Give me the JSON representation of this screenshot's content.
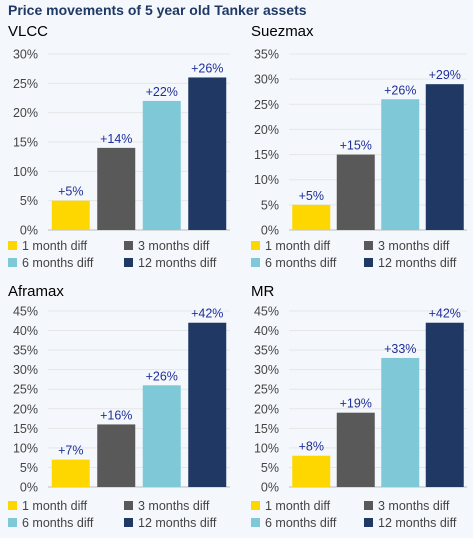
{
  "title": "Price movements of 5 year old Tanker assets",
  "colors": {
    "1 month diff": "#ffd700",
    "3 months diff": "#595959",
    "6 months diff": "#7fc8d8",
    "12 months diff": "#203864"
  },
  "chart_data": [
    {
      "type": "bar",
      "title": "VLCC",
      "categories": [
        "1 month diff",
        "3 months diff",
        "6 months diff",
        "12 months diff"
      ],
      "values": [
        5,
        14,
        22,
        26
      ],
      "data_labels": [
        "+5%",
        "+14%",
        "+22%",
        "+26%"
      ],
      "ylim": [
        0,
        30
      ],
      "yticks": [
        0,
        5,
        10,
        15,
        20,
        25,
        30
      ],
      "ytick_labels": [
        "0%",
        "5%",
        "10%",
        "15%",
        "20%",
        "25%",
        "30%"
      ],
      "legend": [
        "1 month diff",
        "3 months diff",
        "6 months diff",
        "12 months diff"
      ],
      "legend_position": "bottom"
    },
    {
      "type": "bar",
      "title": "Suezmax",
      "categories": [
        "1 month diff",
        "3 months diff",
        "6 months diff",
        "12 months diff"
      ],
      "values": [
        5,
        15,
        26,
        29
      ],
      "data_labels": [
        "+5%",
        "+15%",
        "+26%",
        "+29%"
      ],
      "ylim": [
        0,
        35
      ],
      "yticks": [
        0,
        5,
        10,
        15,
        20,
        25,
        30,
        35
      ],
      "ytick_labels": [
        "0%",
        "5%",
        "10%",
        "15%",
        "20%",
        "25%",
        "30%",
        "35%"
      ],
      "legend": [
        "1 month diff",
        "3 months diff",
        "6 months diff",
        "12 months diff"
      ],
      "legend_position": "bottom"
    },
    {
      "type": "bar",
      "title": "Aframax",
      "categories": [
        "1 month diff",
        "3 months diff",
        "6 months diff",
        "12 months diff"
      ],
      "values": [
        7,
        16,
        26,
        42
      ],
      "data_labels": [
        "+7%",
        "+16%",
        "+26%",
        "+42%"
      ],
      "ylim": [
        0,
        45
      ],
      "yticks": [
        0,
        5,
        10,
        15,
        20,
        25,
        30,
        35,
        40,
        45
      ],
      "ytick_labels": [
        "0%",
        "5%",
        "10%",
        "15%",
        "20%",
        "25%",
        "30%",
        "35%",
        "40%",
        "45%"
      ],
      "legend": [
        "1 month diff",
        "3 months diff",
        "6 months diff",
        "12 months diff"
      ],
      "legend_position": "bottom"
    },
    {
      "type": "bar",
      "title": "MR",
      "categories": [
        "1 month diff",
        "3 months diff",
        "6 months diff",
        "12 months diff"
      ],
      "values": [
        8,
        19,
        33,
        42
      ],
      "data_labels": [
        "+8%",
        "+19%",
        "+33%",
        "+42%"
      ],
      "ylim": [
        0,
        45
      ],
      "yticks": [
        0,
        5,
        10,
        15,
        20,
        25,
        30,
        35,
        40,
        45
      ],
      "ytick_labels": [
        "0%",
        "5%",
        "10%",
        "15%",
        "20%",
        "25%",
        "30%",
        "35%",
        "40%",
        "45%"
      ],
      "legend": [
        "1 month diff",
        "3 months diff",
        "6 months diff",
        "12 months diff"
      ],
      "legend_position": "bottom"
    }
  ]
}
